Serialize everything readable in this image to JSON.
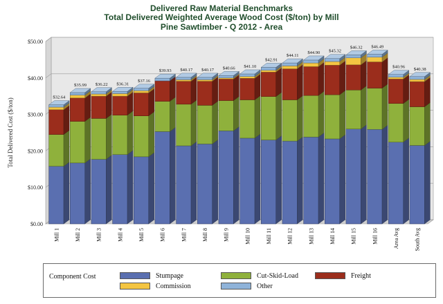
{
  "titles": {
    "line1": "Delivered Raw Material Benchmarks",
    "line2": "Total Delivered Weighted Average Wood Cost ($/ton) by Mill",
    "line3": "Pine Sawtimber -     Q 2012 - Area"
  },
  "colors": {
    "stumpage": "#5a6fb0",
    "cut_skid_load": "#8fb13c",
    "freight": "#9b2d1c",
    "commission": "#f4c542",
    "other": "#8fb3d9",
    "title": "#1f4d2b",
    "wall": "#e8e8e8"
  },
  "chart_data": {
    "type": "bar",
    "stacked": true,
    "three_d": true,
    "title": "Total Delivered Weighted Average Wood Cost ($/ton) by Mill",
    "xlabel": "",
    "ylabel": "Total Delivered Cost ($/ton)",
    "ylim": [
      0,
      50
    ],
    "yticks": [
      "$0.00",
      "$10.00",
      "$20.00",
      "$30.00",
      "$40.00",
      "$50.00"
    ],
    "categories": [
      "Mill 1",
      "Mill 2",
      "Mill 3",
      "Mill 4",
      "Mill 5",
      "Mill 6",
      "Mill 7",
      "Mill 8",
      "Mill 9",
      "Mill 10",
      "Mill 11",
      "Mill 12",
      "Mill 13",
      "Mill 14",
      "Mill 15",
      "Mill 16",
      "Area Avg",
      "South Avg"
    ],
    "totals": [
      "$32.64",
      "$35.99",
      "$36.22",
      "$36.31",
      "$37.16",
      "$39.93",
      "$40.17",
      "$40.17",
      "$40.66",
      "$41.10",
      "$42.91",
      "$44.11",
      "$44.90",
      "$45.32",
      "$46.32",
      "$46.49",
      "$40.96",
      "$40.38"
    ],
    "series": [
      {
        "name": "Stumpage",
        "values": [
          15.8,
          16.7,
          17.7,
          19.0,
          18.4,
          25.3,
          21.4,
          21.9,
          25.5,
          23.5,
          23.0,
          22.7,
          23.8,
          23.3,
          26.0,
          25.9,
          22.4,
          21.5
        ]
      },
      {
        "name": "Cut-Skid-Load",
        "values": [
          8.7,
          11.4,
          11.2,
          10.8,
          11.2,
          8.3,
          11.4,
          10.6,
          8.3,
          10.5,
          11.9,
          11.3,
          11.4,
          12.1,
          10.7,
          11.3,
          10.6,
          10.6
        ]
      },
      {
        "name": "Freight",
        "values": [
          6.8,
          6.4,
          6.1,
          5.2,
          6.3,
          5.6,
          6.3,
          6.6,
          5.9,
          5.9,
          6.7,
          8.5,
          7.9,
          8.1,
          6.9,
          7.2,
          6.7,
          6.9
        ]
      },
      {
        "name": "Commission",
        "values": [
          0.7,
          0.8,
          0.6,
          0.7,
          0.6,
          0.0,
          0.4,
          0.4,
          0.3,
          0.5,
          0.5,
          0.8,
          1.0,
          1.0,
          1.9,
          1.3,
          0.5,
          0.6
        ]
      },
      {
        "name": "Other",
        "values": [
          0.64,
          0.69,
          0.62,
          0.61,
          0.66,
          0.73,
          0.67,
          0.67,
          0.66,
          0.7,
          0.81,
          0.81,
          0.8,
          0.82,
          0.82,
          0.79,
          0.76,
          0.78
        ]
      }
    ],
    "legend": {
      "title": "Component Cost",
      "position": "bottom",
      "items": [
        "Stumpage",
        "Cut-Skid-Load",
        "Freight",
        "Commission",
        "Other"
      ]
    }
  }
}
